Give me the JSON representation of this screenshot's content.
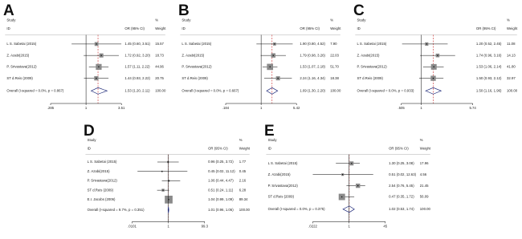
{
  "chart_data": [
    {
      "type": "forest",
      "panel": "A",
      "headers": {
        "study": "Study",
        "id": "ID",
        "or": "OR (95% CI)",
        "pct": "%",
        "weight": "Weight"
      },
      "studies": [
        "L S. Sabetai (2015)",
        "Z. Azabi(2015)",
        "P. Srivastava(2012)",
        "ST d.Reis (2009)"
      ],
      "estimates": [
        1.45,
        1.72,
        1.57,
        1.44
      ],
      "ci_low": [
        0.6,
        0.92,
        1.11,
        0.93
      ],
      "ci_high": [
        3.51,
        3.2,
        2.22,
        2.22
      ],
      "ci_labels": [
        "1.45 (0.60, 3.51)",
        "1.72 (0.92, 3.20)",
        "1.57 (1.11, 2.22)",
        "1.44 (0.93, 2.22)"
      ],
      "weights": [
        "15.57",
        "18.73",
        "44.96",
        "20.75"
      ],
      "overall": {
        "label": "Overall (I-squared = 0.0%, p = 0.867)",
        "estimate": 1.53,
        "ci_low": 1.2,
        "ci_high": 2.11,
        "ci_label": "1.53 (1.20, 2.11)",
        "weight": "100.00"
      },
      "xlim": [
        0.285,
        3.51
      ],
      "xticks": [
        {
          "value": 0.285,
          "label": ".285"
        },
        1,
        3.51
      ],
      "log_scale": true,
      "color": "#8a8a8a",
      "diamond_color": "#1f2a7a",
      "ref_color": "#c00000"
    },
    {
      "type": "forest",
      "panel": "B",
      "headers": {
        "study": "Study",
        "id": "ID",
        "or": "OR (95% CI)",
        "pct": "%",
        "weight": "Weight"
      },
      "studies": [
        "L S. Sabetai (2015)",
        "Z. Azabi(2015)",
        "P. Srivastava(2012)",
        "ST d.Reis (2009)"
      ],
      "estimates": [
        1.9,
        1.79,
        1.53,
        2.24
      ],
      "ci_low": [
        0.8,
        0.98,
        1.07,
        1.16
      ],
      "ci_high": [
        4.52,
        3.26,
        2.18,
        4.34
      ],
      "ci_labels": [
        "1.90 (0.80, 4.52)",
        "1.79 (0.98, 3.26)",
        "1.53 (1.07, 2.18)",
        "2.24 (1.16, 4.34)"
      ],
      "weights": [
        "7.90",
        "22.03",
        "51.70",
        "18.38"
      ],
      "overall": {
        "label": "Overall (I-squared = 0.0%, p = 0.667)",
        "estimate": 1.69,
        "ci_low": 1.3,
        "ci_high": 2.2,
        "ci_label": "1.69 (1.30, 2.20)",
        "weight": "100.00"
      },
      "xlim": [
        0.184,
        5.42
      ],
      "xticks": [
        {
          "value": 0.184,
          "label": ".184"
        },
        1,
        5.42
      ],
      "log_scale": true,
      "color": "#8a8a8a",
      "diamond_color": "#1f2a7a",
      "ref_color": "#c00000"
    },
    {
      "type": "forest",
      "panel": "C",
      "headers": {
        "study": "Study",
        "id": "ID",
        "or": "OR (95% CI)",
        "pct": "%",
        "weight": "Weight"
      },
      "studies": [
        "L S. Sabetai (2015)",
        "Z. Azabi(2015)",
        "P. Srivastava(2012)",
        "ST d.Reis (2009)"
      ],
      "estimates": [
        1.2,
        1.74,
        1.53,
        1.5
      ],
      "ci_low": [
        0.52,
        0.96,
        1.06,
        0.93
      ],
      "ci_high": [
        2.45,
        3.16,
        2.14,
        2.12
      ],
      "ci_labels": [
        "1.20 (0.52, 2.45)",
        "1.74 (0.96, 3.16)",
        "1.53 (1.06, 2.14)",
        "1.50 (0.93, 2.12)"
      ],
      "weights": [
        "11.08",
        "14.13",
        "41.80",
        "32.97"
      ],
      "overall": {
        "label": "Overall (I-squared = 0.0%, p = 0.933)",
        "estimate": 1.5,
        "ci_low": 1.16,
        "ci_high": 1.96,
        "ci_label": "1.50 (1.16, 1.96)",
        "weight": "100.00"
      },
      "xlim": [
        0.505,
        5.74
      ],
      "xticks": [
        {
          "value": 0.505,
          "label": ".505"
        },
        1,
        5.74
      ],
      "log_scale": true,
      "color": "#8a8a8a",
      "diamond_color": "#1f2a7a",
      "ref_color": "#c00000"
    },
    {
      "type": "forest",
      "panel": "D",
      "headers": {
        "study": "Study",
        "id": "ID",
        "or": "OR (95% CI)",
        "pct": "%",
        "weight": "Weight"
      },
      "studies": [
        "L S. Sabetai (2015)",
        "Z. Azabi(2015)",
        "P. Srivastava(2012)",
        "ST d.Reis (2009)",
        "E.I. Jacobs (2006)"
      ],
      "estimates": [
        0.96,
        0.45,
        1.06,
        0.51,
        1.04
      ],
      "ci_low": [
        0.25,
        0.02,
        0.44,
        0.24,
        0.99
      ],
      "ci_high": [
        3.72,
        11.12,
        4.47,
        1.11,
        1.09
      ],
      "ci_labels": [
        "0.96 (0.25, 3.72)",
        "0.45 (0.02, 11.12)",
        "1.06 (0.44, 4.47)",
        "0.51 (0.24, 1.11)",
        "1.04 (0.99, 1.09)"
      ],
      "weights": [
        "1.77",
        "0.45",
        "2.16",
        "6.28",
        "89.34"
      ],
      "overall": {
        "label": "Overall (I-squared = 9.7%, p = 0.351)",
        "estimate": 1.01,
        "ci_low": 0.96,
        "ci_high": 1.06,
        "ci_label": "1.01 (0.96, 1.06)",
        "weight": "100.00"
      },
      "xlim": [
        0.0101,
        99.3
      ],
      "xticks": [
        {
          "value": 0.0101,
          "label": ".0101"
        },
        1,
        99.3
      ],
      "log_scale": true,
      "color": "#8a8a8a",
      "diamond_color": "#1f2a7a",
      "ref_color": "#c00000"
    },
    {
      "type": "forest",
      "panel": "E",
      "headers": {
        "study": "Study",
        "id": "ID",
        "or": "OR (95% CI)",
        "pct": "%",
        "weight": "Weight"
      },
      "studies": [
        "L S. Sabetai (2015)",
        "Z. Azabi(2015)",
        "P. Srivastava(2012)",
        "ST d.Reis (2009)"
      ],
      "estimates": [
        1.3,
        0.51,
        2.54,
        0.47
      ],
      "ci_low": [
        0.25,
        0.02,
        0.76,
        0.35
      ],
      "ci_high": [
        3.08,
        12.63,
        5.45,
        1.72
      ],
      "ci_labels": [
        "1.30 (0.25, 3.08)",
        "0.51 (0.02, 12.63)",
        "2.54 (0.76, 5.45)",
        "0.47 (0.35, 1.72)"
      ],
      "weights": [
        "17.96",
        "4.56",
        "21.45",
        "56.09"
      ],
      "overall": {
        "label": "Overall (I-squared = 0.0%, p = 0.375)",
        "estimate": 1.02,
        "ci_low": 0.53,
        "ci_high": 1.74,
        "ci_label": "1.02 (0.53, 1.74)",
        "weight": "100.00"
      },
      "xlim": [
        0.0222,
        45
      ],
      "xticks": [
        {
          "value": 0.0222,
          "label": ".0222"
        },
        1,
        45
      ],
      "log_scale": true,
      "color": "#8a8a8a",
      "diamond_color": "#1f2a7a",
      "ref_color": "#c00000"
    }
  ]
}
